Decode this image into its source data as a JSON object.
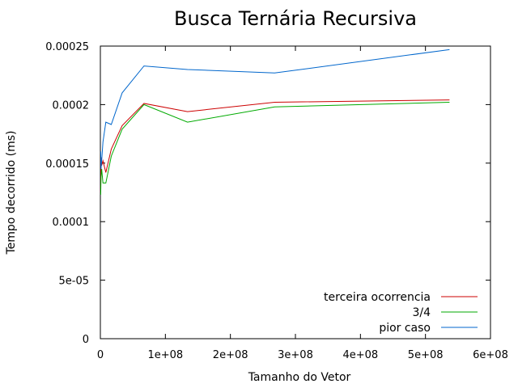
{
  "chart_data": {
    "type": "line",
    "title": "Busca Ternária Recursiva",
    "xlabel": "Tamanho do Vetor",
    "ylabel": "Tempo decorrido (ms)",
    "xlim": [
      0,
      600000000
    ],
    "ylim": [
      0,
      0.00025
    ],
    "x_ticks": [
      {
        "value": 0,
        "label": "0"
      },
      {
        "value": 100000000,
        "label": "1e+08"
      },
      {
        "value": 200000000,
        "label": "2e+08"
      },
      {
        "value": 300000000,
        "label": "3e+08"
      },
      {
        "value": 400000000,
        "label": "4e+08"
      },
      {
        "value": 500000000,
        "label": "5e+08"
      },
      {
        "value": 600000000,
        "label": "6e+08"
      }
    ],
    "y_ticks": [
      {
        "value": 0,
        "label": "0"
      },
      {
        "value": 5e-05,
        "label": "5e-05"
      },
      {
        "value": 0.0001,
        "label": "0.0001"
      },
      {
        "value": 0.00015,
        "label": "0.00015"
      },
      {
        "value": 0.0002,
        "label": "0.0002"
      },
      {
        "value": 0.00025,
        "label": "0.00025"
      }
    ],
    "grid": false,
    "legend_position": "bottom-right",
    "series": [
      {
        "name": "terceira ocorrencia",
        "color": "#cc0000",
        "points": [
          [
            500000,
            0.000125
          ],
          [
            1000000,
            0.000155
          ],
          [
            2000000,
            0.000148
          ],
          [
            4000000,
            0.000152
          ],
          [
            8400000,
            0.000142
          ],
          [
            16800000,
            0.000162
          ],
          [
            33500000,
            0.000182
          ],
          [
            67100000,
            0.000201
          ],
          [
            134000000,
            0.000194
          ],
          [
            268000000,
            0.000202
          ],
          [
            537000000,
            0.000204
          ]
        ]
      },
      {
        "name": "3/4",
        "color": "#00aa00",
        "points": [
          [
            500000,
            0.000123
          ],
          [
            1000000,
            0.000138
          ],
          [
            2000000,
            0.000145
          ],
          [
            4000000,
            0.000133
          ],
          [
            8400000,
            0.000133
          ],
          [
            16800000,
            0.000156
          ],
          [
            33500000,
            0.000179
          ],
          [
            67100000,
            0.0002
          ],
          [
            134000000,
            0.000185
          ],
          [
            268000000,
            0.000198
          ],
          [
            537000000,
            0.000202
          ]
        ]
      },
      {
        "name": "pior caso",
        "color": "#0066cc",
        "points": [
          [
            500000,
            0.00016
          ],
          [
            1000000,
            0.000145
          ],
          [
            2000000,
            0.000152
          ],
          [
            4000000,
            0.000168
          ],
          [
            8400000,
            0.000185
          ],
          [
            16800000,
            0.000183
          ],
          [
            33500000,
            0.00021
          ],
          [
            67100000,
            0.000233
          ],
          [
            134000000,
            0.00023
          ],
          [
            268000000,
            0.000227
          ],
          [
            537000000,
            0.000247
          ]
        ]
      }
    ]
  }
}
